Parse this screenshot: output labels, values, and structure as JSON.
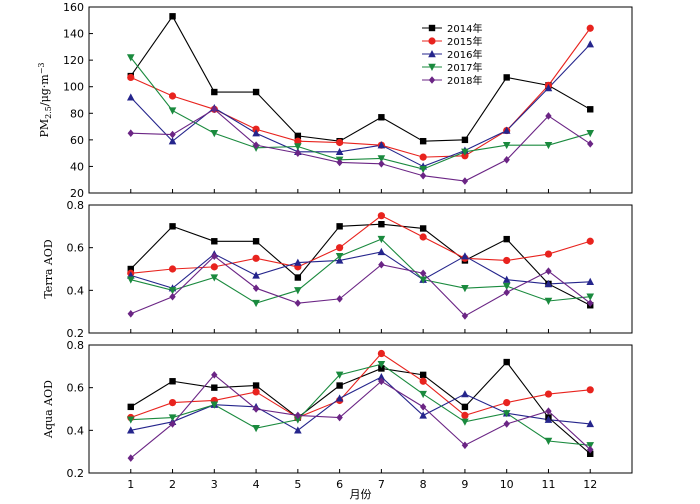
{
  "chart_data": [
    {
      "type": "line",
      "panel": "top",
      "ylabel_parts": {
        "base": "PM",
        "sub": "2.5",
        "unit": "/μg·m",
        "sup": "−3"
      },
      "ylim": [
        20,
        160
      ],
      "yticks": [
        20,
        40,
        60,
        80,
        100,
        120,
        140,
        160
      ],
      "x": [
        1,
        2,
        3,
        4,
        5,
        6,
        7,
        8,
        9,
        10,
        11,
        12
      ],
      "legend": "top-center",
      "series": [
        {
          "name": "2014年",
          "color": "#000000",
          "marker": "square",
          "values": [
            108,
            153,
            96,
            96,
            63,
            59,
            77,
            59,
            60,
            107,
            101,
            83
          ]
        },
        {
          "name": "2015年",
          "color": "#e8231e",
          "marker": "circle",
          "values": [
            107,
            93,
            83,
            68,
            59,
            58,
            56,
            47,
            48,
            67,
            101,
            144
          ]
        },
        {
          "name": "2016年",
          "color": "#25258c",
          "marker": "triangle",
          "values": [
            92,
            59,
            84,
            65,
            51,
            51,
            56,
            40,
            52,
            67,
            99,
            132
          ]
        },
        {
          "name": "2017年",
          "color": "#1a8a3e",
          "marker": "tri-down",
          "values": [
            122,
            82,
            65,
            54,
            55,
            45,
            46,
            38,
            51,
            56,
            56,
            65
          ]
        },
        {
          "name": "2018年",
          "color": "#6b2585",
          "marker": "diamond",
          "values": [
            65,
            64,
            83,
            56,
            50,
            43,
            42,
            33,
            29,
            45,
            78,
            57
          ]
        }
      ]
    },
    {
      "type": "line",
      "panel": "middle",
      "ylabel": "Terra AOD",
      "ylim": [
        0.2,
        0.8
      ],
      "yticks": [
        "0.2",
        "0.4",
        "0.6",
        "0.8"
      ],
      "x": [
        1,
        2,
        3,
        4,
        5,
        6,
        7,
        8,
        9,
        10,
        11,
        12
      ],
      "series": [
        {
          "color": "#000000",
          "marker": "square",
          "values": [
            0.5,
            0.7,
            0.63,
            0.63,
            0.46,
            0.7,
            0.71,
            0.69,
            0.54,
            0.64,
            0.43,
            0.33
          ]
        },
        {
          "color": "#e8231e",
          "marker": "circle",
          "values": [
            0.48,
            0.5,
            0.51,
            0.55,
            0.51,
            0.6,
            0.75,
            0.65,
            0.55,
            0.54,
            0.57,
            0.63
          ]
        },
        {
          "color": "#25258c",
          "marker": "triangle",
          "values": [
            0.47,
            0.41,
            0.57,
            0.47,
            0.53,
            0.54,
            0.58,
            0.45,
            0.56,
            0.45,
            0.43,
            0.44
          ]
        },
        {
          "color": "#1a8a3e",
          "marker": "tri-down",
          "values": [
            0.45,
            0.4,
            0.46,
            0.34,
            0.4,
            0.56,
            0.64,
            0.45,
            0.41,
            0.42,
            0.35,
            0.37
          ]
        },
        {
          "color": "#6b2585",
          "marker": "diamond",
          "values": [
            0.29,
            0.37,
            0.56,
            0.41,
            0.34,
            0.36,
            0.52,
            0.48,
            0.28,
            0.39,
            0.49,
            0.34
          ]
        }
      ]
    },
    {
      "type": "line",
      "panel": "bottom",
      "ylabel": "Aqua AOD",
      "xlabel": "月份",
      "ylim": [
        0.2,
        0.8
      ],
      "yticks": [
        "0.2",
        "0.4",
        "0.6",
        "0.8"
      ],
      "x": [
        1,
        2,
        3,
        4,
        5,
        6,
        7,
        8,
        9,
        10,
        11,
        12
      ],
      "xticks": [
        "1",
        "2",
        "3",
        "4",
        "5",
        "6",
        "7",
        "8",
        "9",
        "10",
        "11",
        "12"
      ],
      "series": [
        {
          "color": "#000000",
          "marker": "square",
          "values": [
            0.51,
            0.63,
            0.6,
            0.61,
            0.46,
            0.61,
            0.69,
            0.66,
            0.51,
            0.72,
            0.46,
            0.29
          ]
        },
        {
          "color": "#e8231e",
          "marker": "circle",
          "values": [
            0.46,
            0.53,
            0.54,
            0.58,
            0.46,
            0.54,
            0.76,
            0.63,
            0.47,
            0.53,
            0.57,
            0.59
          ]
        },
        {
          "color": "#25258c",
          "marker": "triangle",
          "values": [
            0.4,
            0.44,
            0.52,
            0.51,
            0.4,
            0.55,
            0.65,
            0.47,
            0.57,
            0.48,
            0.45,
            0.43
          ]
        },
        {
          "color": "#1a8a3e",
          "marker": "tri-down",
          "values": [
            0.45,
            0.46,
            0.52,
            0.41,
            0.45,
            0.66,
            0.71,
            0.57,
            0.44,
            0.48,
            0.35,
            0.33
          ]
        },
        {
          "color": "#6b2585",
          "marker": "diamond",
          "values": [
            0.27,
            0.43,
            0.66,
            0.5,
            0.47,
            0.46,
            0.63,
            0.51,
            0.33,
            0.43,
            0.49,
            0.31
          ]
        }
      ]
    }
  ]
}
